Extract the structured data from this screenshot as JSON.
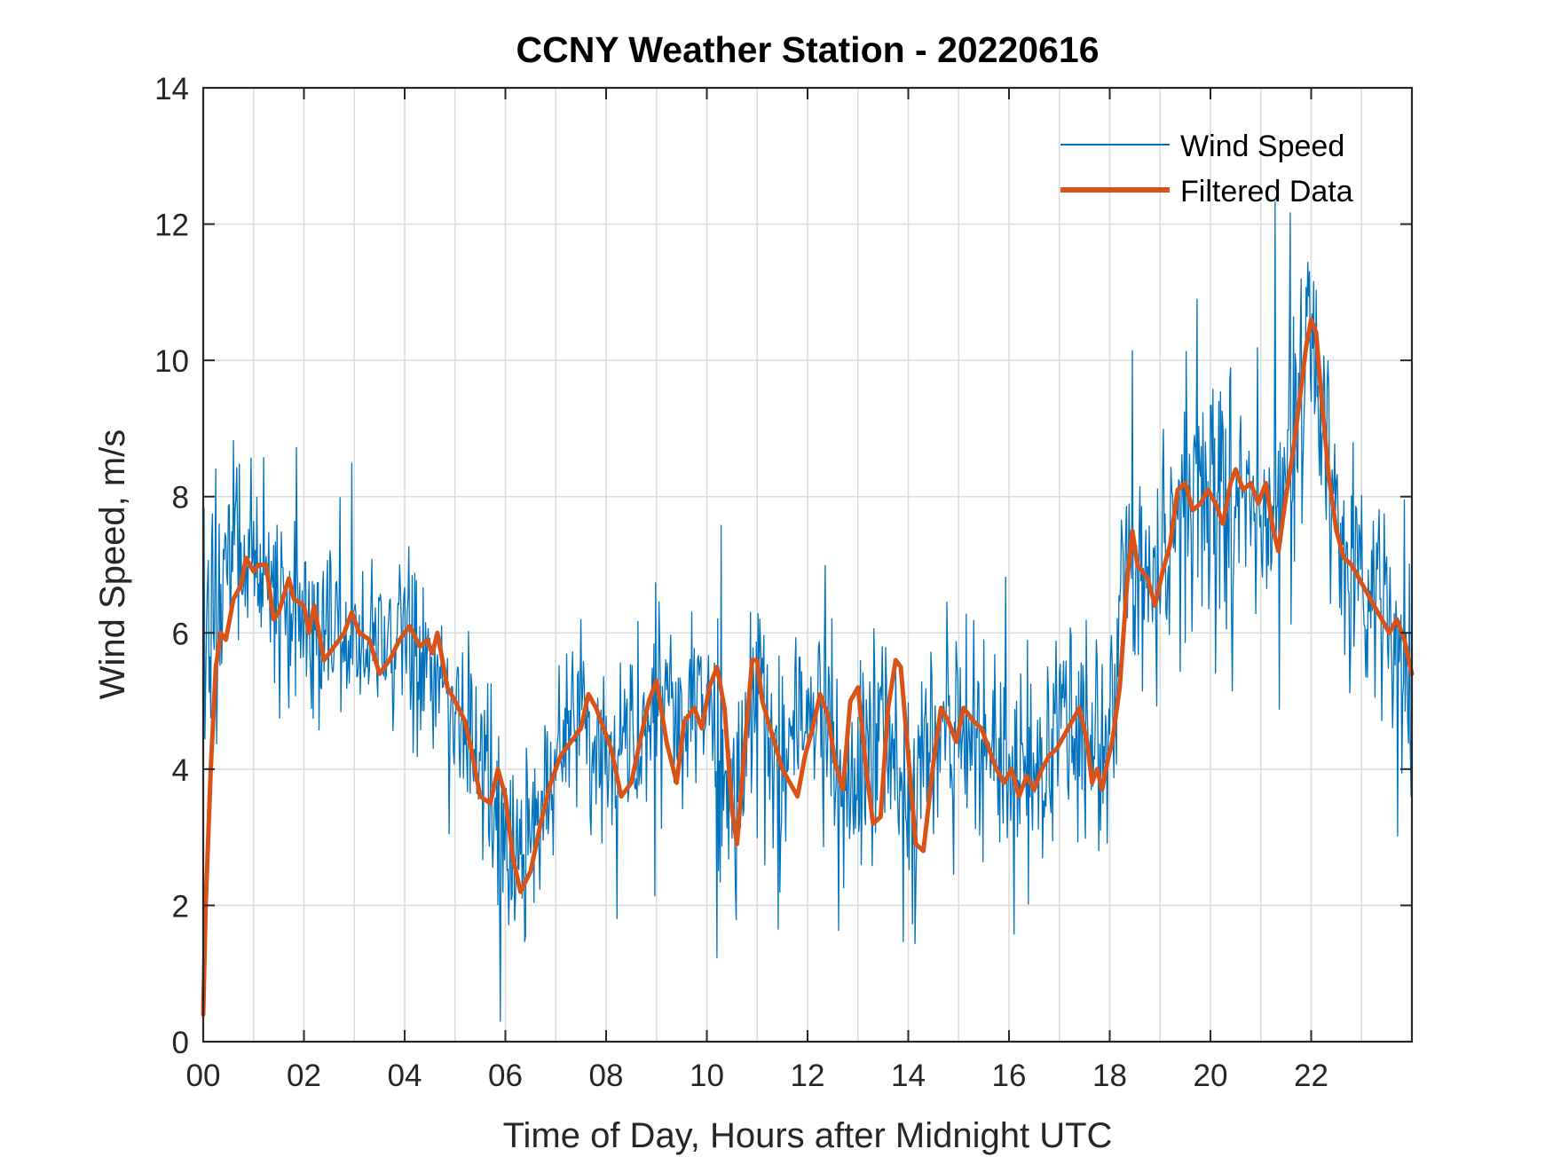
{
  "chart_data": {
    "type": "line",
    "title": "CCNY Weather Station - 20220616",
    "xlabel": "Time of Day, Hours after Midnight UTC",
    "ylabel": "Wind Speed, m/s",
    "xlim": [
      0,
      24
    ],
    "ylim": [
      0,
      14
    ],
    "grid": true,
    "legend_position": "top-right",
    "x_ticks": [
      {
        "value": 0,
        "label": "00"
      },
      {
        "value": 2,
        "label": "02"
      },
      {
        "value": 4,
        "label": "04"
      },
      {
        "value": 6,
        "label": "06"
      },
      {
        "value": 8,
        "label": "08"
      },
      {
        "value": 10,
        "label": "10"
      },
      {
        "value": 12,
        "label": "12"
      },
      {
        "value": 14,
        "label": "14"
      },
      {
        "value": 16,
        "label": "16"
      },
      {
        "value": 18,
        "label": "18"
      },
      {
        "value": 20,
        "label": "20"
      },
      {
        "value": 22,
        "label": "22"
      }
    ],
    "x_minor_grid_step": 1,
    "y_ticks": [
      {
        "value": 0,
        "label": "0"
      },
      {
        "value": 2,
        "label": "2"
      },
      {
        "value": 4,
        "label": "4"
      },
      {
        "value": 6,
        "label": "6"
      },
      {
        "value": 8,
        "label": "8"
      },
      {
        "value": 10,
        "label": "10"
      },
      {
        "value": 12,
        "label": "12"
      },
      {
        "value": 14,
        "label": "14"
      }
    ],
    "series": [
      {
        "name": "Wind Speed",
        "color": "#0072BD",
        "line_width": 1.3,
        "note": "raw high-frequency wind speed; mean level shown, noise amplitude in m/s",
        "x": [
          0,
          0.1,
          0.3,
          0.5,
          0.8,
          1.0,
          1.3,
          1.6,
          2.0,
          2.4,
          2.8,
          3.2,
          3.6,
          4.0,
          4.4,
          4.8,
          5.2,
          5.6,
          6.0,
          6.2,
          6.5,
          7.0,
          7.5,
          8.0,
          8.5,
          9.0,
          9.5,
          10.0,
          10.5,
          11.0,
          11.5,
          12.0,
          12.5,
          13.0,
          13.5,
          14.0,
          14.5,
          15.0,
          15.5,
          16.0,
          16.5,
          17.0,
          17.5,
          18.0,
          18.3,
          18.7,
          19.0,
          19.5,
          20.0,
          20.5,
          21.0,
          21.3,
          21.6,
          21.9,
          22.1,
          22.4,
          22.7,
          23.0,
          23.3,
          23.6,
          24.0
        ],
        "values": [
          6.0,
          6.3,
          6.5,
          6.8,
          7.0,
          7.0,
          6.8,
          6.5,
          6.3,
          6.0,
          6.0,
          5.8,
          5.7,
          5.8,
          5.6,
          5.3,
          4.6,
          3.8,
          2.8,
          2.3,
          3.0,
          4.2,
          4.8,
          3.8,
          4.5,
          5.0,
          4.6,
          5.2,
          3.5,
          5.4,
          4.3,
          4.8,
          4.2,
          3.5,
          5.0,
          3.0,
          4.7,
          4.8,
          4.2,
          3.9,
          4.0,
          4.6,
          4.6,
          4.6,
          7.0,
          6.8,
          7.0,
          7.8,
          7.9,
          8.0,
          7.9,
          8.1,
          8.8,
          10.2,
          10.0,
          8.3,
          7.2,
          6.7,
          6.3,
          5.8,
          5.2
        ],
        "noise": [
          2.3,
          2.3,
          2.0,
          1.9,
          1.8,
          1.7,
          1.7,
          1.7,
          1.7,
          1.6,
          1.6,
          1.6,
          1.6,
          1.6,
          1.6,
          1.6,
          1.7,
          1.8,
          1.7,
          1.6,
          1.6,
          1.7,
          1.7,
          1.8,
          1.8,
          1.8,
          1.8,
          1.9,
          2.0,
          2.0,
          1.9,
          1.8,
          1.8,
          1.9,
          2.0,
          2.1,
          1.9,
          1.8,
          1.7,
          1.7,
          1.7,
          1.8,
          2.0,
          2.2,
          2.2,
          2.2,
          2.3,
          2.3,
          2.3,
          2.3,
          2.4,
          2.5,
          2.6,
          2.6,
          2.5,
          2.3,
          2.2,
          2.1,
          2.0,
          2.0,
          2.4
        ]
      },
      {
        "name": "Filtered Data",
        "color": "#D95319",
        "line_width": 5,
        "x": [
          0,
          0.05,
          0.15,
          0.25,
          0.35,
          0.45,
          0.6,
          0.75,
          0.85,
          1.0,
          1.1,
          1.25,
          1.4,
          1.5,
          1.7,
          1.8,
          2.0,
          2.1,
          2.2,
          2.4,
          2.5,
          2.8,
          2.95,
          3.1,
          3.3,
          3.5,
          3.7,
          3.9,
          4.1,
          4.3,
          4.45,
          4.55,
          4.65,
          4.85,
          5.0,
          5.2,
          5.35,
          5.5,
          5.7,
          5.85,
          6.0,
          6.15,
          6.3,
          6.5,
          6.7,
          6.9,
          7.1,
          7.3,
          7.5,
          7.65,
          7.8,
          7.95,
          8.1,
          8.3,
          8.5,
          8.7,
          8.85,
          9.0,
          9.2,
          9.4,
          9.55,
          9.75,
          9.9,
          10.05,
          10.2,
          10.35,
          10.5,
          10.6,
          10.75,
          10.9,
          11.0,
          11.1,
          11.3,
          11.5,
          11.65,
          11.8,
          11.95,
          12.1,
          12.25,
          12.4,
          12.55,
          12.7,
          12.85,
          13.0,
          13.15,
          13.3,
          13.45,
          13.6,
          13.75,
          13.85,
          14.0,
          14.15,
          14.3,
          14.5,
          14.65,
          14.8,
          14.95,
          15.1,
          15.3,
          15.45,
          15.6,
          15.75,
          15.9,
          16.05,
          16.2,
          16.35,
          16.5,
          16.65,
          16.8,
          16.95,
          17.1,
          17.25,
          17.4,
          17.55,
          17.65,
          17.75,
          17.85,
          17.95,
          18.05,
          18.2,
          18.35,
          18.45,
          18.55,
          18.65,
          18.75,
          18.9,
          19.05,
          19.2,
          19.35,
          19.5,
          19.65,
          19.8,
          19.95,
          20.1,
          20.25,
          20.4,
          20.5,
          20.65,
          20.8,
          20.95,
          21.1,
          21.25,
          21.35,
          21.5,
          21.65,
          21.8,
          21.9,
          22.0,
          22.1,
          22.2,
          22.35,
          22.5,
          22.65,
          22.8,
          22.95,
          23.1,
          23.25,
          23.4,
          23.55,
          23.7,
          23.85,
          24.0
        ],
        "values": [
          0.4,
          2.0,
          4.0,
          5.5,
          6.0,
          5.9,
          6.5,
          6.7,
          7.1,
          6.9,
          7.0,
          7.0,
          6.2,
          6.3,
          6.8,
          6.5,
          6.4,
          6.0,
          6.4,
          5.6,
          5.7,
          6.0,
          6.3,
          6.0,
          5.9,
          5.4,
          5.6,
          5.9,
          6.1,
          5.8,
          5.9,
          5.7,
          6.0,
          5.2,
          5.0,
          4.7,
          4.2,
          3.6,
          3.5,
          4.0,
          3.6,
          2.7,
          2.2,
          2.5,
          3.2,
          3.8,
          4.2,
          4.4,
          4.6,
          5.1,
          4.9,
          4.6,
          4.3,
          3.6,
          3.8,
          4.5,
          5.0,
          5.3,
          4.4,
          3.8,
          4.7,
          4.9,
          4.6,
          5.2,
          5.5,
          4.9,
          3.4,
          2.9,
          4.3,
          5.6,
          5.6,
          5.0,
          4.5,
          4.0,
          3.8,
          3.6,
          4.2,
          4.6,
          5.1,
          4.8,
          4.1,
          3.7,
          5.0,
          5.2,
          4.1,
          3.2,
          3.3,
          4.9,
          5.6,
          5.5,
          4.2,
          2.9,
          2.8,
          4.1,
          4.9,
          4.7,
          4.4,
          4.9,
          4.7,
          4.6,
          4.3,
          4.0,
          3.8,
          4.0,
          3.6,
          3.9,
          3.7,
          4.0,
          4.2,
          4.3,
          4.5,
          4.7,
          4.9,
          4.4,
          3.8,
          4.0,
          3.7,
          4.1,
          4.4,
          5.2,
          6.8,
          7.5,
          7.0,
          6.9,
          6.8,
          6.4,
          6.9,
          7.3,
          8.1,
          8.2,
          7.8,
          7.9,
          8.1,
          7.9,
          7.6,
          8.2,
          8.4,
          8.1,
          8.2,
          7.9,
          8.2,
          7.5,
          7.2,
          8.0,
          8.7,
          9.6,
          10.2,
          10.6,
          10.4,
          9.5,
          8.3,
          7.5,
          7.1,
          7.0,
          6.8,
          6.6,
          6.4,
          6.2,
          6.0,
          6.2,
          5.9,
          5.4
        ]
      }
    ]
  }
}
